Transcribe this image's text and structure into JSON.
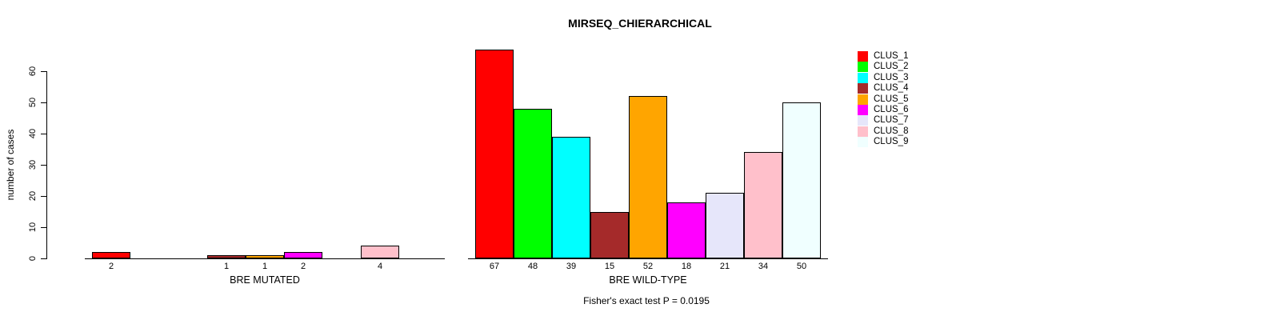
{
  "figure": {
    "title": "MIRSEQ_CHIERARCHICAL",
    "footer": "Fisher's exact test P = 0.0195"
  },
  "chart_data": {
    "type": "bar",
    "title": "MIRSEQ_CHIERARCHICAL",
    "ylabel": "number of cases",
    "ylim": [
      0,
      67
    ],
    "yticks": [
      0,
      10,
      20,
      30,
      40,
      50,
      60
    ],
    "grid": false,
    "legend_position": "right",
    "categories": [
      "CLUS_1",
      "CLUS_2",
      "CLUS_3",
      "CLUS_4",
      "CLUS_5",
      "CLUS_6",
      "CLUS_7",
      "CLUS_8",
      "CLUS_9"
    ],
    "colors": [
      "#FF0000",
      "#00FF00",
      "#00FFFF",
      "#A52A2A",
      "#FFA500",
      "#FF00FF",
      "#E6E6FA",
      "#FFC0CB",
      "#F0FFFF"
    ],
    "panels": [
      {
        "xlabel": "BRE MUTATED",
        "values": [
          2,
          0,
          0,
          1,
          1,
          2,
          0,
          4,
          0
        ],
        "bar_labels": [
          "2",
          "",
          "",
          "1",
          "1",
          "2",
          "",
          "4",
          ""
        ]
      },
      {
        "xlabel": "BRE WILD-TYPE",
        "values": [
          67,
          48,
          39,
          15,
          52,
          18,
          21,
          34,
          50
        ],
        "bar_labels": [
          "67",
          "48",
          "39",
          "15",
          "52",
          "18",
          "21",
          "34",
          "50"
        ]
      }
    ],
    "annotation": "Fisher's exact test P = 0.0195"
  },
  "legend": {
    "items": [
      {
        "label": "CLUS_1",
        "color": "#FF0000"
      },
      {
        "label": "CLUS_2",
        "color": "#00FF00"
      },
      {
        "label": "CLUS_3",
        "color": "#00FFFF"
      },
      {
        "label": "CLUS_4",
        "color": "#A52A2A"
      },
      {
        "label": "CLUS_5",
        "color": "#FFA500"
      },
      {
        "label": "CLUS_6",
        "color": "#FF00FF"
      },
      {
        "label": "CLUS_7",
        "color": "#E6E6FA"
      },
      {
        "label": "CLUS_8",
        "color": "#FFC0CB"
      },
      {
        "label": "CLUS_9",
        "color": "#F0FFFF"
      }
    ]
  }
}
